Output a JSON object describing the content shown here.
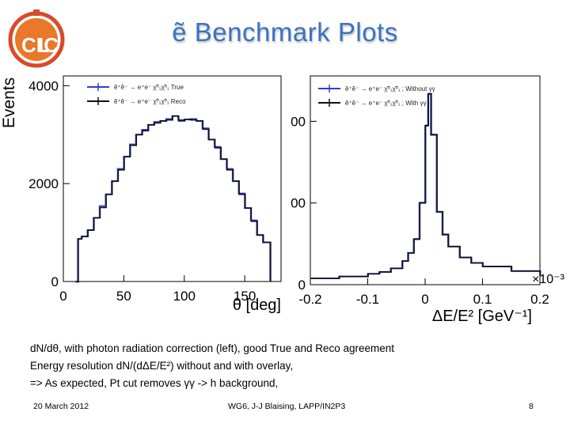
{
  "slide": {
    "title": "ẽ Benchmark Plots",
    "caption": [
      "dN/dθ, with photon radiation correction (left), good True and Reco agreement",
      "Energy resolution dN/(dΔE/E²) without and with overlay,",
      "=> As expected, Pt cut removes γγ -> h background,"
    ],
    "footer": {
      "date": "20 March 2012",
      "center": "WG6, J-J Blaising, LAPP/IN2P3",
      "page": "8"
    },
    "logo": {
      "text_left": "CL",
      "text_right": "IC",
      "colors": {
        "ring": "#d94a2a",
        "orange": "#e8782a",
        "white": "#ffffff"
      }
    }
  },
  "chart_data": [
    {
      "type": "line",
      "xlabel": "θ [deg]",
      "ylabel": "Events",
      "xlim": [
        0,
        180
      ],
      "ylim": [
        0,
        4200
      ],
      "xticks": [
        "0",
        "50",
        "100",
        "150"
      ],
      "yticks": [
        "0",
        "2000",
        "4000"
      ],
      "legend": {
        "placement": "top-left",
        "entries": [
          "ẽ⁺ẽ⁻ → e⁺e⁻ χ̃⁰₁χ̃⁰₁ True",
          "ẽ⁺ẽ⁻ → e⁺e⁻ χ̃⁰₁χ̃⁰₁ Reco"
        ]
      },
      "x": [
        10,
        12,
        15,
        20,
        25,
        30,
        35,
        40,
        45,
        50,
        55,
        60,
        65,
        70,
        75,
        80,
        85,
        90,
        95,
        100,
        105,
        110,
        115,
        120,
        125,
        130,
        135,
        140,
        145,
        150,
        155,
        160,
        165,
        170,
        171
      ],
      "series": [
        {
          "name": "True",
          "color": "#2c3fd0",
          "values": [
            0,
            870,
            920,
            1050,
            1300,
            1540,
            1780,
            2050,
            2300,
            2550,
            2800,
            3000,
            3100,
            3200,
            3260,
            3280,
            3320,
            3380,
            3300,
            3310,
            3320,
            3280,
            3130,
            2900,
            2750,
            2500,
            2300,
            2050,
            1800,
            1500,
            1250,
            950,
            800,
            800,
            0
          ]
        },
        {
          "name": "Reco",
          "color": "#111111",
          "values": [
            0,
            880,
            930,
            1060,
            1310,
            1520,
            1790,
            2060,
            2290,
            2560,
            2790,
            3010,
            3090,
            3210,
            3250,
            3290,
            3310,
            3390,
            3290,
            3320,
            3310,
            3290,
            3120,
            2910,
            2740,
            2510,
            2290,
            2060,
            1790,
            1510,
            1240,
            960,
            810,
            810,
            0
          ]
        }
      ]
    },
    {
      "type": "line",
      "xlabel": "ΔE/E² [GeV⁻¹]",
      "ylabel": "",
      "x_multiplier": "×10⁻³",
      "xlim": [
        -0.2,
        0.2
      ],
      "ylim": [
        0,
        2300
      ],
      "xticks": [
        "-0.2",
        "-0.1",
        "0",
        "0.1",
        "0.2"
      ],
      "yticks": [
        "0",
        "00",
        "00"
      ],
      "legend": {
        "placement": "top-left",
        "entries": [
          "ẽ⁺ẽ⁻ → e⁺e⁻ χ̃⁰₁χ̃⁰₁ ; Without γγ",
          "ẽ⁺ẽ⁻ → e⁺e⁻ χ̃⁰₁χ̃⁰₁ ; With γγ"
        ]
      },
      "x": [
        -0.2,
        -0.15,
        -0.1,
        -0.08,
        -0.06,
        -0.04,
        -0.03,
        -0.02,
        -0.01,
        0,
        0.005,
        0.01,
        0.02,
        0.03,
        0.04,
        0.06,
        0.08,
        0.1,
        0.15,
        0.2
      ],
      "series": [
        {
          "name": "Without γγ",
          "color": "#2c3fd0",
          "values": [
            70,
            90,
            120,
            140,
            180,
            260,
            350,
            500,
            900,
            1750,
            2100,
            1650,
            800,
            550,
            420,
            300,
            240,
            200,
            150,
            100
          ]
        },
        {
          "name": "With γγ",
          "color": "#111111",
          "values": [
            75,
            95,
            125,
            145,
            185,
            265,
            355,
            510,
            910,
            1760,
            2110,
            1660,
            810,
            560,
            425,
            305,
            245,
            205,
            155,
            105
          ]
        }
      ]
    }
  ]
}
